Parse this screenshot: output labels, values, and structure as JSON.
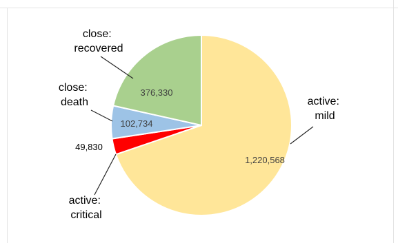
{
  "chart_data": {
    "type": "pie",
    "title": "",
    "categories": [
      "active: mild",
      "active: critical",
      "close: death",
      "close: recovered"
    ],
    "category_lines": [
      [
        "active:",
        "mild"
      ],
      [
        "active:",
        "critical"
      ],
      [
        "close:",
        "death"
      ],
      [
        "close:",
        "recovered"
      ]
    ],
    "values": [
      1220568,
      49830,
      102734,
      376330
    ],
    "value_labels": [
      "1,220,568",
      "49,830",
      "102,734",
      "376,330"
    ],
    "colors": [
      "#FFE699",
      "#FF0000",
      "#9DC3E6",
      "#A9D08E"
    ],
    "start_angle": "12 o'clock, clockwise",
    "legend": "none",
    "grid": false
  }
}
